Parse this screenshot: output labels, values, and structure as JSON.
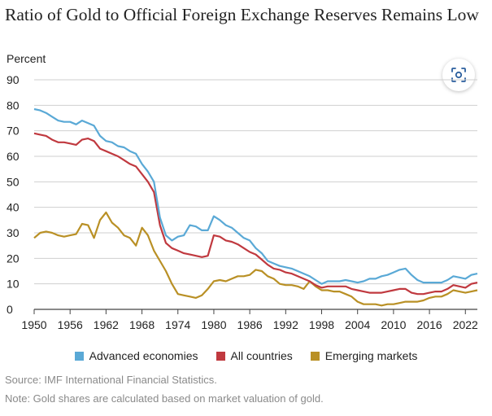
{
  "header": {
    "title": "Ratio of Gold to Official Foreign Exchange Reserves Remains Low"
  },
  "toolbar": {
    "scan_icon": "scan-image-icon"
  },
  "footer": {
    "source": "Source: IMF International Financial Statistics.",
    "note": "Note: Gold shares are calculated based on market valuation of gold."
  },
  "chart_data": {
    "type": "line",
    "title": "Ratio of Gold to Official Foreign Exchange Reserves Remains Low",
    "ylabel": "Percent",
    "xlabel": "",
    "xlim": [
      1950,
      2024
    ],
    "ylim": [
      0,
      90
    ],
    "y_ticks": [
      0,
      10,
      20,
      30,
      40,
      50,
      60,
      70,
      80,
      90
    ],
    "x_ticks": [
      1950,
      1956,
      1962,
      1968,
      1974,
      1980,
      1986,
      1992,
      1998,
      2004,
      2010,
      2016,
      2022
    ],
    "grid": true,
    "legend_position": "bottom",
    "series": [
      {
        "name": "Advanced economies",
        "color": "#5aa9d6",
        "points": [
          [
            1950,
            78.5
          ],
          [
            1951,
            78
          ],
          [
            1952,
            77
          ],
          [
            1953,
            75.5
          ],
          [
            1954,
            74
          ],
          [
            1955,
            73.5
          ],
          [
            1956,
            73.5
          ],
          [
            1957,
            72.5
          ],
          [
            1958,
            74
          ],
          [
            1959,
            73
          ],
          [
            1960,
            72
          ],
          [
            1961,
            68
          ],
          [
            1962,
            66
          ],
          [
            1963,
            65.5
          ],
          [
            1964,
            64
          ],
          [
            1965,
            63.5
          ],
          [
            1966,
            62
          ],
          [
            1967,
            61
          ],
          [
            1968,
            57
          ],
          [
            1969,
            54
          ],
          [
            1970,
            50
          ],
          [
            1971,
            36
          ],
          [
            1972,
            29
          ],
          [
            1973,
            27
          ],
          [
            1974,
            28.5
          ],
          [
            1975,
            29
          ],
          [
            1976,
            33
          ],
          [
            1977,
            32.5
          ],
          [
            1978,
            31
          ],
          [
            1979,
            31
          ],
          [
            1980,
            36.5
          ],
          [
            1981,
            35
          ],
          [
            1982,
            33
          ],
          [
            1983,
            32
          ],
          [
            1984,
            30
          ],
          [
            1985,
            28
          ],
          [
            1986,
            27
          ],
          [
            1987,
            24
          ],
          [
            1988,
            22
          ],
          [
            1989,
            19
          ],
          [
            1990,
            18
          ],
          [
            1991,
            17
          ],
          [
            1992,
            16.5
          ],
          [
            1993,
            16
          ],
          [
            1994,
            15
          ],
          [
            1995,
            14
          ],
          [
            1996,
            13
          ],
          [
            1997,
            11.5
          ],
          [
            1998,
            10
          ],
          [
            1999,
            11
          ],
          [
            2000,
            11
          ],
          [
            2001,
            11
          ],
          [
            2002,
            11.5
          ],
          [
            2003,
            11
          ],
          [
            2004,
            10.5
          ],
          [
            2005,
            11
          ],
          [
            2006,
            12
          ],
          [
            2007,
            12
          ],
          [
            2008,
            13
          ],
          [
            2009,
            13.5
          ],
          [
            2010,
            14.5
          ],
          [
            2011,
            15.5
          ],
          [
            2012,
            16
          ],
          [
            2013,
            13.5
          ],
          [
            2014,
            11.5
          ],
          [
            2015,
            10.5
          ],
          [
            2016,
            10.5
          ],
          [
            2017,
            10.5
          ],
          [
            2018,
            10.5
          ],
          [
            2019,
            11.5
          ],
          [
            2020,
            13
          ],
          [
            2021,
            12.5
          ],
          [
            2022,
            12
          ],
          [
            2023,
            13.5
          ],
          [
            2024,
            14
          ]
        ]
      },
      {
        "name": "All countries",
        "color": "#c0393f",
        "points": [
          [
            1950,
            69
          ],
          [
            1951,
            68.5
          ],
          [
            1952,
            68
          ],
          [
            1953,
            66.5
          ],
          [
            1954,
            65.5
          ],
          [
            1955,
            65.5
          ],
          [
            1956,
            65
          ],
          [
            1957,
            64.5
          ],
          [
            1958,
            66.5
          ],
          [
            1959,
            67
          ],
          [
            1960,
            66
          ],
          [
            1961,
            63
          ],
          [
            1962,
            62
          ],
          [
            1963,
            61
          ],
          [
            1964,
            60
          ],
          [
            1965,
            58.5
          ],
          [
            1966,
            57
          ],
          [
            1967,
            56
          ],
          [
            1968,
            53
          ],
          [
            1969,
            50
          ],
          [
            1970,
            46
          ],
          [
            1971,
            33
          ],
          [
            1972,
            26
          ],
          [
            1973,
            24
          ],
          [
            1974,
            23
          ],
          [
            1975,
            22
          ],
          [
            1976,
            21.5
          ],
          [
            1977,
            21
          ],
          [
            1978,
            20.5
          ],
          [
            1979,
            21
          ],
          [
            1980,
            29
          ],
          [
            1981,
            28.5
          ],
          [
            1982,
            27
          ],
          [
            1983,
            26.5
          ],
          [
            1984,
            25.5
          ],
          [
            1985,
            24
          ],
          [
            1986,
            22.5
          ],
          [
            1987,
            21.5
          ],
          [
            1988,
            19.5
          ],
          [
            1989,
            17.5
          ],
          [
            1990,
            16
          ],
          [
            1991,
            15.5
          ],
          [
            1992,
            14.5
          ],
          [
            1993,
            14
          ],
          [
            1994,
            13
          ],
          [
            1995,
            12
          ],
          [
            1996,
            11
          ],
          [
            1997,
            9.5
          ],
          [
            1998,
            8.5
          ],
          [
            1999,
            9
          ],
          [
            2000,
            9
          ],
          [
            2001,
            9
          ],
          [
            2002,
            9
          ],
          [
            2003,
            8
          ],
          [
            2004,
            7.5
          ],
          [
            2005,
            7
          ],
          [
            2006,
            6.5
          ],
          [
            2007,
            6.5
          ],
          [
            2008,
            6.5
          ],
          [
            2009,
            7
          ],
          [
            2010,
            7.5
          ],
          [
            2011,
            8
          ],
          [
            2012,
            8
          ],
          [
            2013,
            6.5
          ],
          [
            2014,
            6
          ],
          [
            2015,
            6
          ],
          [
            2016,
            6.5
          ],
          [
            2017,
            7
          ],
          [
            2018,
            7
          ],
          [
            2019,
            8
          ],
          [
            2020,
            9.5
          ],
          [
            2021,
            9
          ],
          [
            2022,
            8.5
          ],
          [
            2023,
            10
          ],
          [
            2024,
            10.5
          ]
        ]
      },
      {
        "name": "Emerging markets",
        "color": "#b99025",
        "points": [
          [
            1950,
            28
          ],
          [
            1951,
            30
          ],
          [
            1952,
            30.5
          ],
          [
            1953,
            30
          ],
          [
            1954,
            29
          ],
          [
            1955,
            28.5
          ],
          [
            1956,
            29
          ],
          [
            1957,
            29.5
          ],
          [
            1958,
            33.5
          ],
          [
            1959,
            33
          ],
          [
            1960,
            28
          ],
          [
            1961,
            35
          ],
          [
            1962,
            38
          ],
          [
            1963,
            34
          ],
          [
            1964,
            32
          ],
          [
            1965,
            29
          ],
          [
            1966,
            28
          ],
          [
            1967,
            25
          ],
          [
            1968,
            32
          ],
          [
            1969,
            29
          ],
          [
            1970,
            23
          ],
          [
            1971,
            19
          ],
          [
            1972,
            15
          ],
          [
            1973,
            10
          ],
          [
            1974,
            6
          ],
          [
            1975,
            5.5
          ],
          [
            1976,
            5
          ],
          [
            1977,
            4.5
          ],
          [
            1978,
            5.5
          ],
          [
            1979,
            8
          ],
          [
            1980,
            11
          ],
          [
            1981,
            11.5
          ],
          [
            1982,
            11
          ],
          [
            1983,
            12
          ],
          [
            1984,
            13
          ],
          [
            1985,
            13
          ],
          [
            1986,
            13.5
          ],
          [
            1987,
            15.5
          ],
          [
            1988,
            15
          ],
          [
            1989,
            13
          ],
          [
            1990,
            12
          ],
          [
            1991,
            10
          ],
          [
            1992,
            9.5
          ],
          [
            1993,
            9.5
          ],
          [
            1994,
            9
          ],
          [
            1995,
            8
          ],
          [
            1996,
            11
          ],
          [
            1997,
            9
          ],
          [
            1998,
            7.5
          ],
          [
            1999,
            7.5
          ],
          [
            2000,
            7
          ],
          [
            2001,
            7
          ],
          [
            2002,
            6
          ],
          [
            2003,
            5
          ],
          [
            2004,
            3
          ],
          [
            2005,
            2
          ],
          [
            2006,
            2
          ],
          [
            2007,
            2
          ],
          [
            2008,
            1.5
          ],
          [
            2009,
            2
          ],
          [
            2010,
            2
          ],
          [
            2011,
            2.5
          ],
          [
            2012,
            3
          ],
          [
            2013,
            3
          ],
          [
            2014,
            3
          ],
          [
            2015,
            3.5
          ],
          [
            2016,
            4.5
          ],
          [
            2017,
            5
          ],
          [
            2018,
            5
          ],
          [
            2019,
            6
          ],
          [
            2020,
            7.5
          ],
          [
            2021,
            7
          ],
          [
            2022,
            6.5
          ],
          [
            2023,
            7
          ],
          [
            2024,
            7.5
          ]
        ]
      }
    ]
  }
}
